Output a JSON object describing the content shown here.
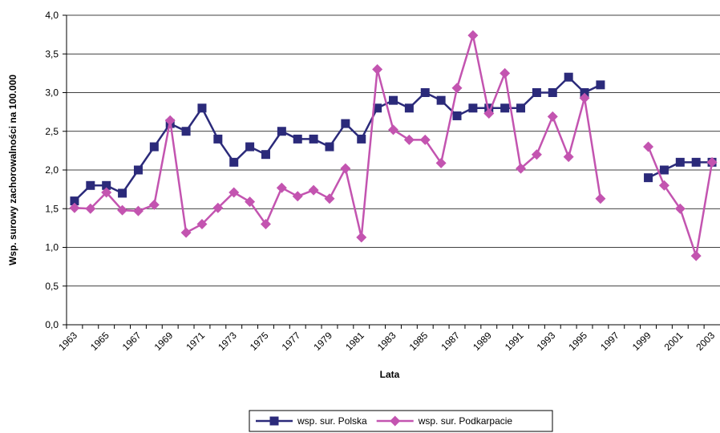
{
  "chart_data": {
    "type": "line",
    "x_label": "Lata",
    "y_label": "Wsp. surowy zachorowalności na 100.000",
    "categories": [
      "1963",
      null,
      "1965",
      null,
      "1967",
      null,
      "1969",
      null,
      "1971",
      null,
      "1973",
      null,
      "1975",
      null,
      "1977",
      null,
      "1979",
      null,
      "1981",
      null,
      "1983",
      null,
      "1985",
      null,
      "1987",
      null,
      "1989",
      null,
      "1991",
      null,
      "1993",
      null,
      "1995",
      null,
      "1997",
      null,
      "1999",
      null,
      "2001",
      null,
      "2003"
    ],
    "series": [
      {
        "name": "wsp. sur. Polska",
        "color": "#2b2a7a",
        "marker": "square",
        "values": [
          1.6,
          1.8,
          1.8,
          1.7,
          2.0,
          2.3,
          2.6,
          2.5,
          2.8,
          2.4,
          2.1,
          2.3,
          2.2,
          2.5,
          2.4,
          2.4,
          2.3,
          2.6,
          2.4,
          2.8,
          2.9,
          2.8,
          3.0,
          2.9,
          2.7,
          2.8,
          2.8,
          2.8,
          2.8,
          3.0,
          3.0,
          3.2,
          3.0,
          3.1,
          null,
          null,
          1.9,
          2.0,
          2.1,
          2.1,
          2.1
        ]
      },
      {
        "name": "wsp. sur. Podkarpacie",
        "color": "#c354b0",
        "marker": "diamond",
        "values": [
          1.51,
          1.5,
          1.71,
          1.48,
          1.47,
          1.55,
          2.64,
          1.19,
          1.3,
          1.51,
          1.71,
          1.59,
          1.3,
          1.77,
          1.66,
          1.74,
          1.63,
          2.02,
          1.13,
          3.3,
          2.52,
          2.39,
          2.39,
          2.09,
          3.06,
          3.74,
          2.73,
          3.25,
          2.02,
          2.2,
          2.69,
          2.17,
          2.93,
          1.63,
          null,
          null,
          2.3,
          1.8,
          1.5,
          0.89,
          2.1
        ]
      }
    ],
    "ylim": [
      0,
      4
    ],
    "yticks": [
      {
        "value": 0,
        "label": "0,0"
      },
      {
        "value": 0.5,
        "label": "0,5"
      },
      {
        "value": 1,
        "label": "1,0"
      },
      {
        "value": 1.5,
        "label": "1,5"
      },
      {
        "value": 2,
        "label": "2,0"
      },
      {
        "value": 2.5,
        "label": "2,5"
      },
      {
        "value": 3,
        "label": "3,0"
      },
      {
        "value": 3.5,
        "label": "3,5"
      },
      {
        "value": 4,
        "label": "4,0"
      }
    ],
    "grid": true,
    "legend": "bottom"
  }
}
